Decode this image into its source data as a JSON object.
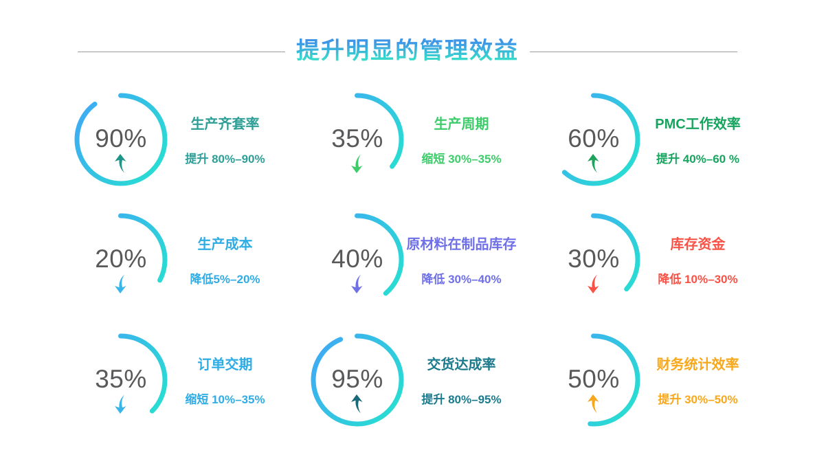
{
  "header": {
    "title": "提升明显的管理效益",
    "title_gradient_top": "#3E96E6",
    "title_gradient_bottom": "#37E4C8",
    "divider_color": "#9C9C9C"
  },
  "ring_style": {
    "gradient_start": "#3FA9F5",
    "gradient_end": "#28DFD0",
    "value_color": "#58595B"
  },
  "metrics": [
    {
      "value": "90%",
      "arc_deg": 324,
      "trend": "up",
      "arrow_icon": "curved-up-arrow-icon",
      "arrow_color": "#1F9488",
      "title": "生产齐套率",
      "subtitle": "提升 80%–90%",
      "color": "#2E9E96"
    },
    {
      "value": "35%",
      "arc_deg": 128,
      "trend": "down",
      "arrow_icon": "curved-down-arrow-icon",
      "arrow_color": "#3ECC6B",
      "title": "生产周期",
      "subtitle": "缩短 30%–35%",
      "color": "#3ECC6B"
    },
    {
      "value": "60%",
      "arc_deg": 222,
      "trend": "up",
      "arrow_icon": "curved-up-arrow-icon",
      "arrow_color": "#1FA35C",
      "title": "PMC工作效率",
      "subtitle": "提升 40%–60 %",
      "color": "#17A45F"
    },
    {
      "value": "20%",
      "arc_deg": 118,
      "trend": "down",
      "arrow_icon": "curved-down-arrow-icon",
      "arrow_color": "#38B6E9",
      "title": "生产成本",
      "subtitle": "降低5%–20%",
      "color": "#30ACE4"
    },
    {
      "value": "40%",
      "arc_deg": 140,
      "trend": "down",
      "arrow_icon": "curved-down-arrow-icon",
      "arrow_color": "#6F6FE8",
      "title": "原材料在制品库存",
      "subtitle": "降低 30%–40%",
      "color": "#6F6FE8"
    },
    {
      "value": "30%",
      "arc_deg": 132,
      "trend": "down",
      "arrow_icon": "curved-down-arrow-icon",
      "arrow_color": "#F85246",
      "title": "库存资金",
      "subtitle": "降低 10%–30%",
      "color": "#F85246"
    },
    {
      "value": "35%",
      "arc_deg": 135,
      "trend": "down",
      "arrow_icon": "curved-down-arrow-icon",
      "arrow_color": "#38B6E9",
      "title": "订单交期",
      "subtitle": "缩短 10%–35%",
      "color": "#30ACE4"
    },
    {
      "value": "95%",
      "arc_deg": 338,
      "trend": "up",
      "arrow_icon": "curved-up-arrow-icon",
      "arrow_color": "#186A78",
      "title": "交货达成率",
      "subtitle": "提升 80%–95%",
      "color": "#1B7A8C"
    },
    {
      "value": "50%",
      "arc_deg": 185,
      "trend": "up",
      "arrow_icon": "curved-up-arrow-icon",
      "arrow_color": "#F6A71B",
      "title": "财务统计效率",
      "subtitle": "提升 30%–50%",
      "color": "#F7A81C"
    }
  ],
  "chart_data": {
    "type": "pie",
    "variant": "donut-gauge-grid",
    "title": "提升明显的管理效益",
    "legend": "none",
    "grid": "3x3",
    "items": [
      {
        "label": "生产齐套率",
        "value": 90,
        "unit": "%",
        "trend": "up",
        "annotation": "提升 80%–90%"
      },
      {
        "label": "生产周期",
        "value": 35,
        "unit": "%",
        "trend": "down",
        "annotation": "缩短 30%–35%"
      },
      {
        "label": "PMC工作效率",
        "value": 60,
        "unit": "%",
        "trend": "up",
        "annotation": "提升 40%–60 %"
      },
      {
        "label": "生产成本",
        "value": 20,
        "unit": "%",
        "trend": "down",
        "annotation": "降低5%–20%"
      },
      {
        "label": "原材料在制品库存",
        "value": 40,
        "unit": "%",
        "trend": "down",
        "annotation": "降低 30%–40%"
      },
      {
        "label": "库存资金",
        "value": 30,
        "unit": "%",
        "trend": "down",
        "annotation": "降低 10%–30%"
      },
      {
        "label": "订单交期",
        "value": 35,
        "unit": "%",
        "trend": "down",
        "annotation": "缩短 10%–35%"
      },
      {
        "label": "交货达成率",
        "value": 95,
        "unit": "%",
        "trend": "up",
        "annotation": "提升 80%–95%"
      },
      {
        "label": "财务统计效率",
        "value": 50,
        "unit": "%",
        "trend": "up",
        "annotation": "提升 30%–50%"
      }
    ]
  }
}
